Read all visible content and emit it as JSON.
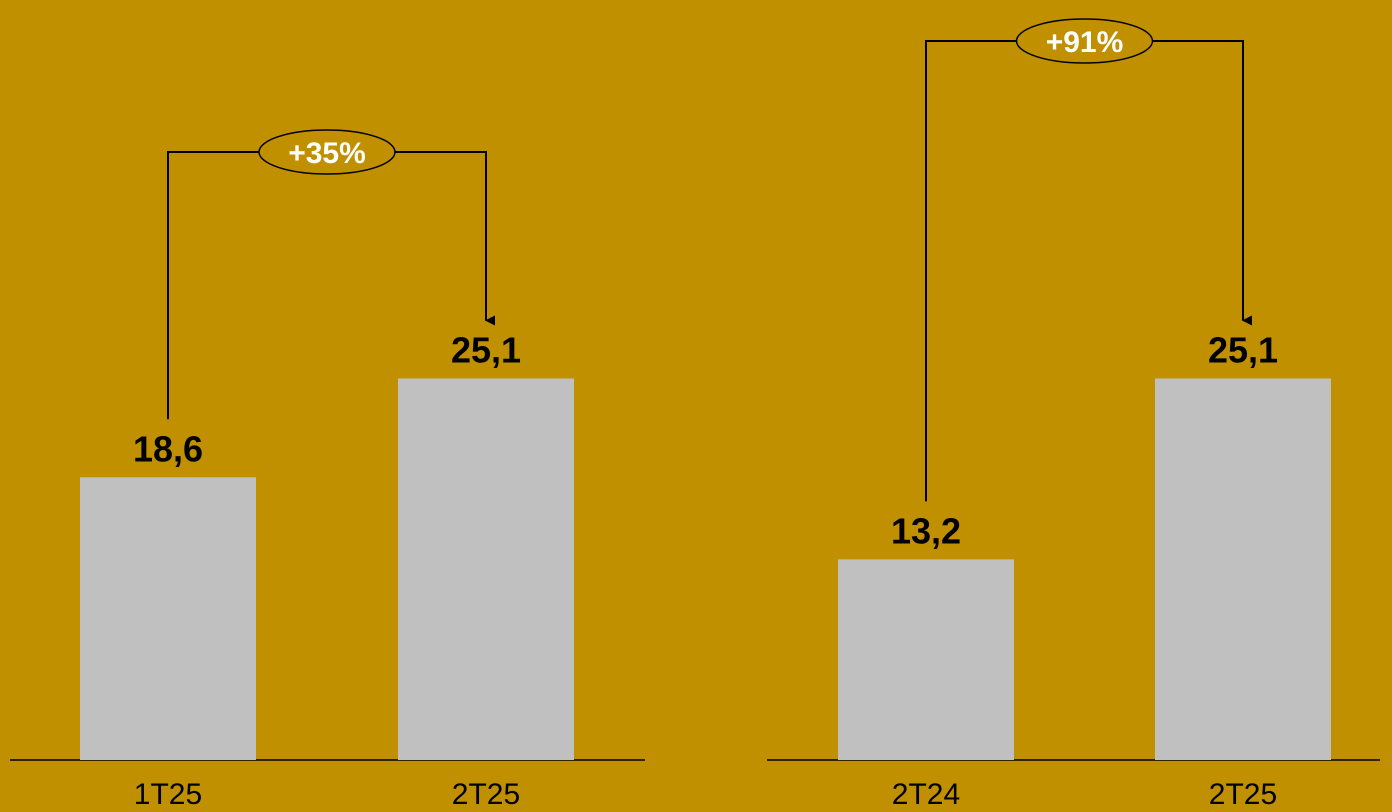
{
  "background_color": "#c09000",
  "bar_color": "#c0c0c0",
  "chart_data": [
    {
      "type": "bar",
      "categories": [
        "1T25",
        "2T25"
      ],
      "values": [
        18.6,
        25.1
      ],
      "value_labels": [
        "18,6",
        "25,1"
      ],
      "growth_label": "+35%",
      "title": "",
      "xlabel": "",
      "ylabel": ""
    },
    {
      "type": "bar",
      "categories": [
        "2T24",
        "2T25"
      ],
      "values": [
        13.2,
        25.1
      ],
      "value_labels": [
        "13,2",
        "25,1"
      ],
      "growth_label": "+91%",
      "title": "",
      "xlabel": "",
      "ylabel": ""
    }
  ]
}
